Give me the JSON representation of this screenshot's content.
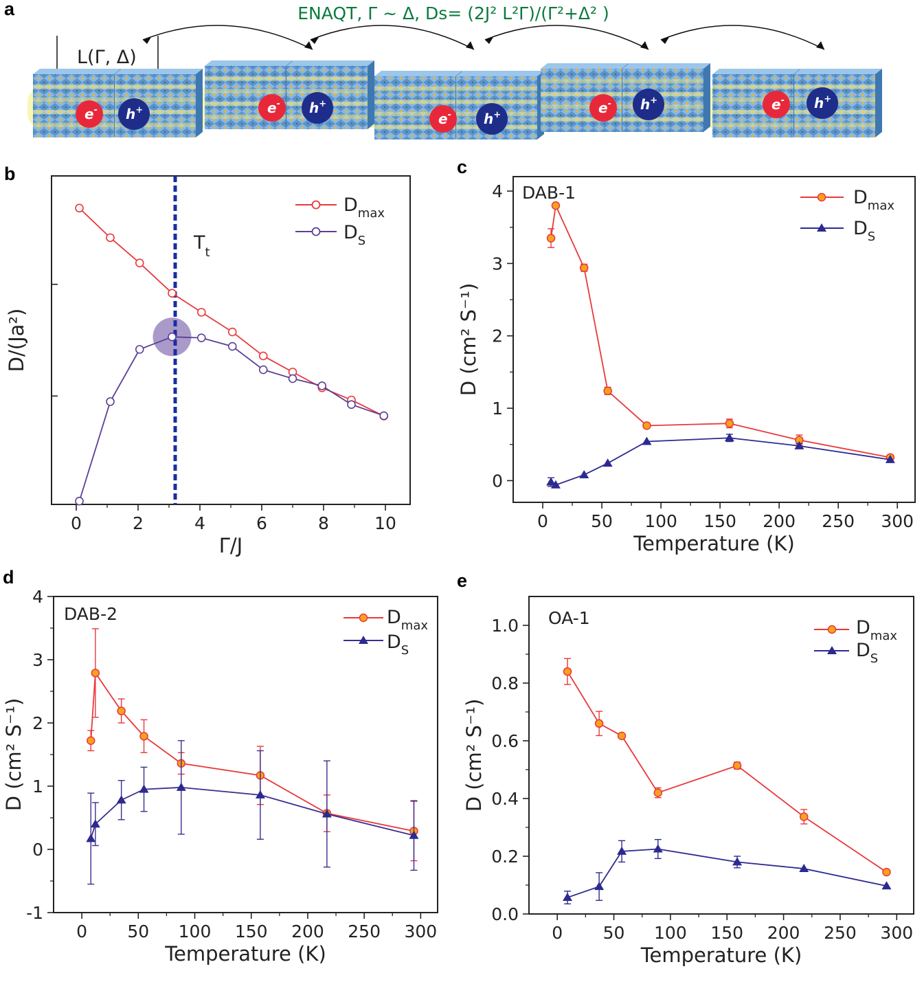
{
  "panel_a": {
    "panel_label": "a",
    "caption": "ENAQT, Γ ~ Δ, Ds= (2J² L²Γ)/(Γ²+Δ² )",
    "length_label": "L(Γ, Δ)",
    "electron": "e",
    "electron_sign": "-",
    "hole": "h",
    "hole_sign": "+",
    "colors": {
      "electron": "#e8283a",
      "hole": "#1f2d8a",
      "crystal": "#5b93c9",
      "glow": "#eef07a"
    }
  },
  "chart_data": [
    {
      "id": "b",
      "panel_label": "b",
      "type": "line",
      "xlabel": "Γ/J",
      "ylabel": "D/(Ja²)",
      "xlim": [
        -0.8,
        10.8
      ],
      "ylim": [
        0,
        1
      ],
      "xticks": [
        0,
        2,
        4,
        6,
        8,
        10
      ],
      "vline": {
        "x": 3.2,
        "label": "T",
        "label_sub": "t",
        "color": "#1a2ea0"
      },
      "highlight": {
        "x": 3.1,
        "y": 0.51,
        "color": "#8e78b8"
      },
      "series": [
        {
          "name": "Dmax",
          "label_main": "D",
          "label_sub": "max",
          "color": "#e8383c",
          "marker": "open-circle",
          "x": [
            0.1,
            1.1,
            2.05,
            3.1,
            4.05,
            5.05,
            6.05,
            7.0,
            7.95,
            8.9,
            9.95
          ],
          "y": [
            0.902,
            0.812,
            0.735,
            0.643,
            0.585,
            0.525,
            0.452,
            0.403,
            0.355,
            0.318,
            0.269
          ]
        },
        {
          "name": "DS",
          "label_main": "D",
          "label_sub": "S",
          "color": "#5b3f94",
          "marker": "open-circle",
          "x": [
            0.1,
            1.1,
            2.05,
            3.1,
            4.05,
            5.05,
            6.05,
            7.0,
            7.95,
            8.9,
            9.95
          ],
          "y": [
            0.01,
            0.313,
            0.472,
            0.51,
            0.507,
            0.481,
            0.41,
            0.383,
            0.361,
            0.304,
            0.27
          ]
        }
      ]
    },
    {
      "id": "c",
      "panel_label": "c",
      "type": "line",
      "dataset": "DAB-1",
      "xlabel": "Temperature (K)",
      "ylabel": "D (cm² S⁻¹)",
      "xlim": [
        -25,
        315
      ],
      "ylim": [
        -0.3,
        4.2
      ],
      "xticks": [
        0,
        50,
        100,
        150,
        200,
        250,
        300
      ],
      "yticks": [
        0,
        1,
        2,
        3,
        4
      ],
      "series": [
        {
          "name": "Dmax",
          "label_main": "D",
          "label_sub": "max",
          "color": "#e8383c",
          "marker": "filled-circle",
          "fill": "#f7a21b",
          "x": [
            7,
            11,
            35,
            55,
            88,
            158,
            217,
            294
          ],
          "y": [
            3.35,
            3.8,
            2.94,
            1.24,
            0.76,
            0.79,
            0.56,
            0.32
          ],
          "err": [
            0.13,
            0,
            0.05,
            0.05,
            0.03,
            0.06,
            0.07,
            0.03
          ]
        },
        {
          "name": "DS",
          "label_main": "D",
          "label_sub": "S",
          "color": "#2d2a8f",
          "marker": "filled-triangle",
          "fill": "#2d2a8f",
          "x": [
            7,
            11,
            35,
            55,
            88,
            158,
            217,
            294
          ],
          "y": [
            -0.02,
            -0.06,
            0.08,
            0.24,
            0.54,
            0.59,
            0.48,
            0.29
          ],
          "err": [
            0.06,
            0,
            0,
            0,
            0,
            0.05,
            0.03,
            0
          ]
        }
      ]
    },
    {
      "id": "d",
      "panel_label": "d",
      "type": "line",
      "dataset": "DAB-2",
      "xlabel": "Temperature (K)",
      "ylabel": "D (cm² S⁻¹)",
      "xlim": [
        -25,
        315
      ],
      "ylim": [
        -1,
        4
      ],
      "xticks": [
        0,
        50,
        100,
        150,
        200,
        250,
        300
      ],
      "yticks": [
        -1,
        0,
        1,
        2,
        3,
        4
      ],
      "series": [
        {
          "name": "Dmax",
          "label_main": "D",
          "label_sub": "max",
          "color": "#e8383c",
          "marker": "filled-circle",
          "fill": "#f7a21b",
          "x": [
            8,
            12,
            35,
            55,
            88,
            158,
            217,
            294
          ],
          "y": [
            1.72,
            2.79,
            2.19,
            1.79,
            1.36,
            1.17,
            0.57,
            0.29
          ],
          "err": [
            0.16,
            0.7,
            0.19,
            0.26,
            0.17,
            0.46,
            0.29,
            0.47
          ]
        },
        {
          "name": "DS",
          "label_main": "D",
          "label_sub": "S",
          "color": "#3b2d8f",
          "marker": "filled-triangle",
          "fill": "#2d2a8f",
          "x": [
            8,
            12,
            35,
            55,
            88,
            158,
            217,
            294
          ],
          "y": [
            0.17,
            0.4,
            0.78,
            0.95,
            0.98,
            0.86,
            0.56,
            0.22
          ],
          "err": [
            0.72,
            0.34,
            0.31,
            0.35,
            0.74,
            0.7,
            0.84,
            0.55
          ]
        }
      ]
    },
    {
      "id": "e",
      "panel_label": "e",
      "type": "line",
      "dataset": "OA-1",
      "xlabel": "Temperature (K)",
      "ylabel": "D (cm² S⁻¹)",
      "xlim": [
        -25,
        315
      ],
      "ylim": [
        0,
        1.1
      ],
      "xticks": [
        0,
        50,
        100,
        150,
        200,
        250,
        300
      ],
      "yticks": [
        0.0,
        0.2,
        0.4,
        0.6,
        0.8,
        1.0
      ],
      "ytick_labels": [
        "0.0",
        "0.2",
        "0.4",
        "0.6",
        "0.8",
        "1.0"
      ],
      "series": [
        {
          "name": "Dmax",
          "label_main": "D",
          "label_sub": "max",
          "color": "#e8383c",
          "marker": "filled-circle",
          "fill": "#f7a21b",
          "x": [
            9,
            37,
            57,
            89,
            159,
            218,
            291
          ],
          "y": [
            0.84,
            0.66,
            0.617,
            0.42,
            0.514,
            0.337,
            0.145
          ],
          "err": [
            0.045,
            0.042,
            0,
            0.017,
            0.012,
            0.025,
            0
          ]
        },
        {
          "name": "DS",
          "label_main": "D",
          "label_sub": "S",
          "color": "#2d2a8f",
          "marker": "filled-triangle",
          "fill": "#2d2a8f",
          "x": [
            9,
            37,
            57,
            89,
            159,
            218,
            291
          ],
          "y": [
            0.057,
            0.095,
            0.217,
            0.225,
            0.18,
            0.157,
            0.097
          ],
          "err": [
            0.022,
            0.048,
            0.037,
            0.033,
            0.02,
            0,
            0
          ]
        }
      ]
    }
  ]
}
